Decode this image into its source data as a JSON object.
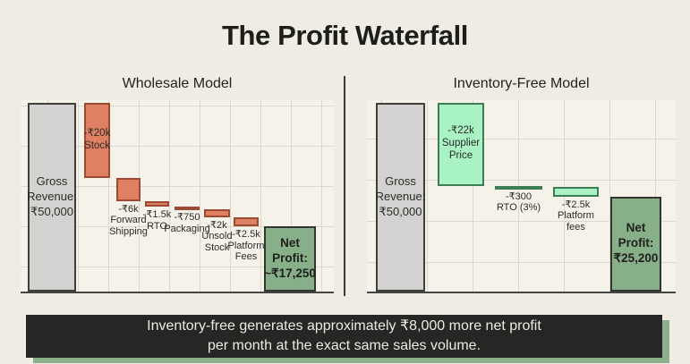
{
  "page": {
    "title": "The Profit Waterfall"
  },
  "banner": {
    "line1": "Inventory-free generates approximately ₹8,000 more net profit",
    "line2": "per month at the exact same sales volume."
  },
  "colors": {
    "background": "#efece3",
    "plot_background": "#f5f2e9",
    "gridline": "#dcd8cd",
    "banner_bg": "#262624",
    "banner_text": "#eceae6",
    "banner_shadow": "#8cb08c"
  },
  "chart_data": [
    {
      "type": "bar",
      "subtype": "waterfall",
      "title": "Wholesale Model",
      "currency": "INR",
      "categories": [
        "Gross Revenue",
        "Stock",
        "Forward Shipping",
        "RTO",
        "Packaging",
        "Unsold Stock",
        "Platform Fees",
        "Net Profit"
      ],
      "values": [
        50000,
        -20000,
        -6000,
        -1500,
        -750,
        -2000,
        -2500,
        17250
      ],
      "roles": [
        "total",
        "decrease",
        "decrease",
        "decrease",
        "decrease",
        "decrease",
        "decrease",
        "total"
      ],
      "bar_labels": [
        [
          "Gross",
          "Revenue:",
          "₹50,000"
        ],
        [
          "-₹20k",
          "Stock"
        ],
        [
          "-₹6k",
          "Forward",
          "Shipping"
        ],
        [
          "-₹1.5k",
          "RTO"
        ],
        [
          "-₹750",
          "Packaging"
        ],
        [
          "-₹2k",
          "Unsold",
          "Stock"
        ],
        [
          "-₹2.5k",
          "Platform",
          "Fees"
        ],
        [
          "Net",
          "Profit:",
          "~₹17,250"
        ]
      ],
      "label_position": [
        "inside",
        "inside",
        "below",
        "below",
        "below",
        "below",
        "below",
        "inside"
      ],
      "ylim": [
        0,
        50000
      ],
      "grid": true,
      "colors": {
        "start_total": "#d3d2d0",
        "start_total_border": "#3f3f3a",
        "decrease": "#e08063",
        "decrease_border": "#9c4a32",
        "end_total": "#87af88",
        "end_total_border": "#333331"
      }
    },
    {
      "type": "bar",
      "subtype": "waterfall",
      "title": "Inventory-Free Model",
      "currency": "INR",
      "categories": [
        "Gross Revenue",
        "Supplier Price",
        "RTO (3%)",
        "Platform fees",
        "Net Profit"
      ],
      "values": [
        50000,
        -22000,
        -300,
        -2500,
        25200
      ],
      "roles": [
        "total",
        "decrease",
        "decrease",
        "decrease",
        "total"
      ],
      "bar_labels": [
        [
          "Gross",
          "Revenue:",
          "₹50,000"
        ],
        [
          "-₹22k",
          "Supplier",
          "Price"
        ],
        [
          "-₹300",
          "RTO (3%)"
        ],
        [
          "-₹2.5k",
          "Platform",
          "fees"
        ],
        [
          "Net",
          "Profit:",
          "₹25,200"
        ]
      ],
      "label_position": [
        "inside",
        "inside",
        "below",
        "below",
        "inside"
      ],
      "ylim": [
        0,
        50000
      ],
      "grid": true,
      "colors": {
        "start_total": "#d3d2d0",
        "start_total_border": "#3f3f3a",
        "decrease": "#a8f2c4",
        "decrease_border": "#3d7c54",
        "end_total": "#87af88",
        "end_total_border": "#333331"
      }
    }
  ]
}
